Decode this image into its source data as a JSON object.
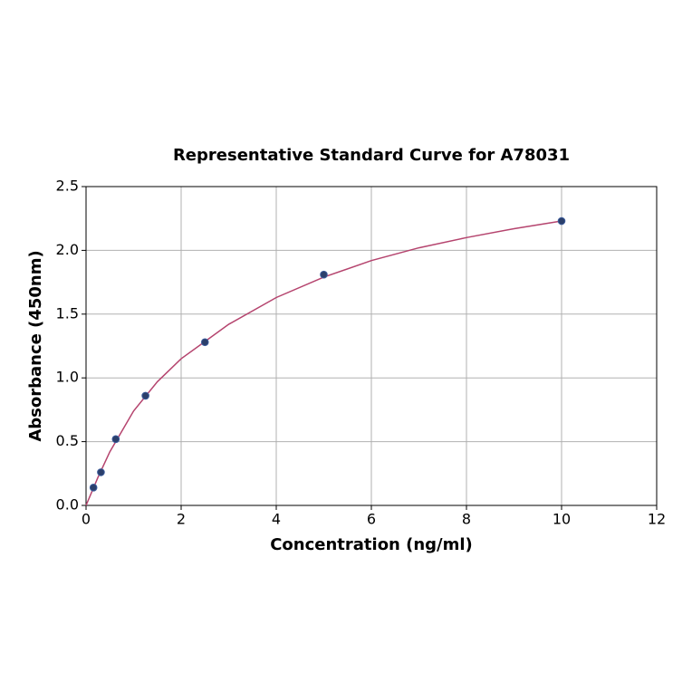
{
  "chart_data": {
    "type": "scatter",
    "title": "Representative Standard Curve for A78031",
    "x_label": "Concentration (ng/ml)",
    "y_label": "Absorbance (450nm)",
    "xlim": [
      0,
      12
    ],
    "ylim": [
      0,
      2.5
    ],
    "xticks": [
      0,
      2,
      4,
      6,
      8,
      10,
      12
    ],
    "yticks": [
      {
        "value": 0,
        "label": "0.0"
      },
      0.5,
      {
        "value": 1,
        "label": "1.0"
      },
      1.5,
      {
        "value": 2,
        "label": "2.0"
      },
      2.5
    ],
    "grid": true,
    "series": [
      {
        "mode": "line",
        "color": "#b5446e",
        "x": [
          0,
          0.25,
          0.5,
          1,
          1.5,
          2,
          3,
          4,
          5,
          6,
          7,
          8,
          9,
          10
        ],
        "values": [
          0.0,
          0.22,
          0.42,
          0.74,
          0.97,
          1.15,
          1.42,
          1.63,
          1.79,
          1.92,
          2.02,
          2.1,
          2.17,
          2.23
        ]
      },
      {
        "mode": "markers",
        "color": "#2b3f6b",
        "x": [
          0.156,
          0.313,
          0.625,
          1.25,
          2.5,
          5,
          10
        ],
        "values": [
          0.14,
          0.26,
          0.52,
          0.86,
          1.28,
          1.81,
          2.23
        ]
      }
    ]
  }
}
